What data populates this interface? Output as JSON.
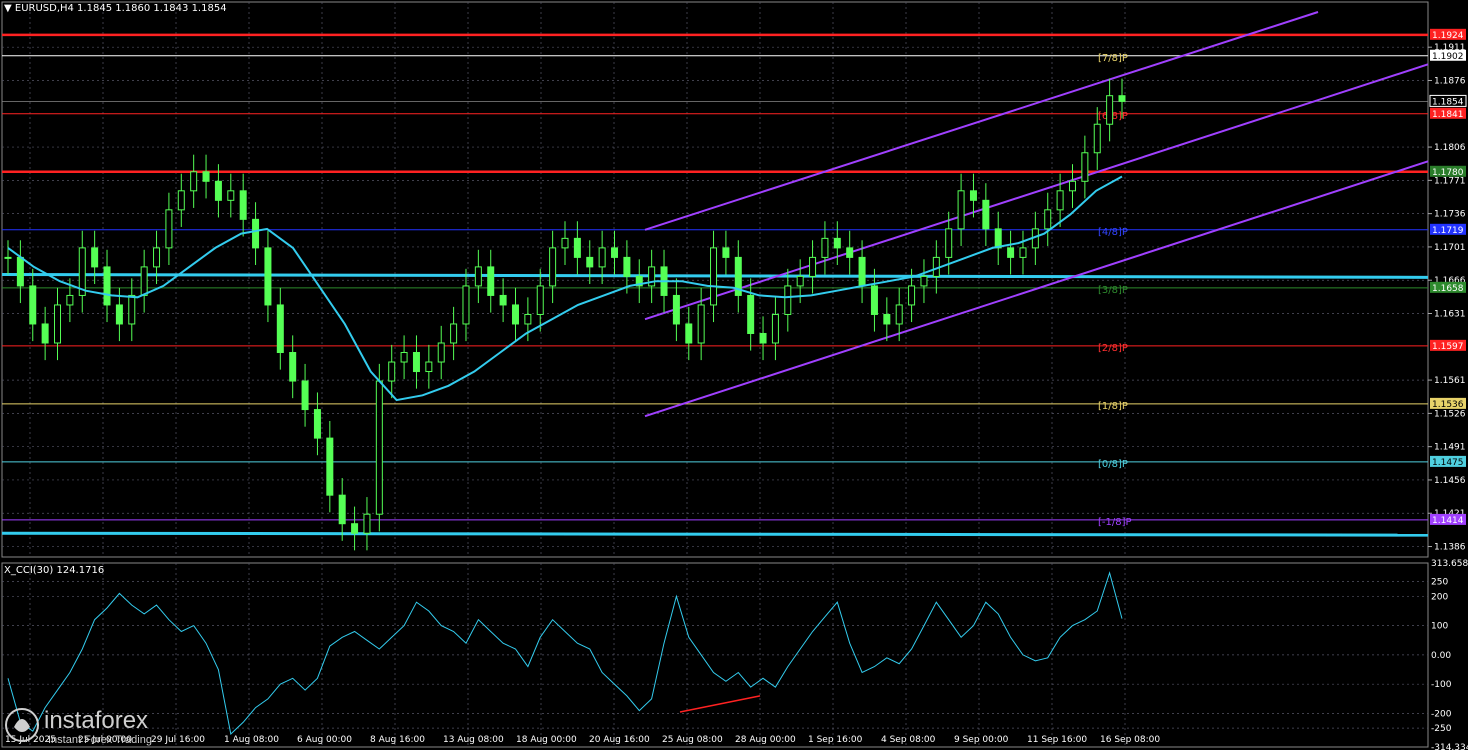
{
  "header": {
    "symbol_line": "▼ EURUSD,H4  1.1845 1.1860 1.1843 1.1854",
    "cci_line": "X_CCI(30) 124.1716"
  },
  "logo": {
    "brand": "instaforex",
    "sub": "Instant Forex Trading"
  },
  "chart_data": {
    "type": "candlestick",
    "symbol": "EURUSD",
    "timeframe": "H4",
    "ohlc": {
      "open": 1.1845,
      "high": 1.186,
      "low": 1.1843,
      "close": 1.1854
    },
    "current_price": 1.1854,
    "ylim": [
      1.1375,
      1.1948
    ],
    "price_ticks": [
      1.1911,
      1.1876,
      1.1806,
      1.1771,
      1.1736,
      1.1701,
      1.1666,
      1.1631,
      1.1561,
      1.1526,
      1.1491,
      1.1456,
      1.1421,
      1.1386
    ],
    "x_ticks": [
      "15 Jul 2025",
      "25 Jul 00:00",
      "29 Jul 16:00",
      "1 Aug 08:00",
      "6 Aug 00:00",
      "8 Aug 16:00",
      "13 Aug 08:00",
      "18 Aug 00:00",
      "20 Aug 16:00",
      "25 Aug 08:00",
      "28 Aug 00:00",
      "1 Sep 16:00",
      "4 Sep 08:00",
      "9 Sep 00:00",
      "11 Sep 16:00",
      "16 Sep 08:00"
    ],
    "close_series": [
      1.169,
      1.166,
      1.162,
      1.16,
      1.164,
      1.165,
      1.17,
      1.168,
      1.164,
      1.162,
      1.165,
      1.168,
      1.17,
      1.174,
      1.176,
      1.178,
      1.177,
      1.175,
      1.176,
      1.173,
      1.17,
      1.164,
      1.159,
      1.156,
      1.153,
      1.15,
      1.144,
      1.141,
      1.14,
      1.142,
      1.156,
      1.158,
      1.159,
      1.157,
      1.158,
      1.16,
      1.162,
      1.166,
      1.168,
      1.165,
      1.164,
      1.162,
      1.163,
      1.166,
      1.17,
      1.171,
      1.169,
      1.168,
      1.17,
      1.169,
      1.167,
      1.166,
      1.168,
      1.165,
      1.162,
      1.16,
      1.164,
      1.17,
      1.169,
      1.165,
      1.161,
      1.16,
      1.163,
      1.166,
      1.167,
      1.169,
      1.171,
      1.17,
      1.169,
      1.166,
      1.163,
      1.162,
      1.164,
      1.166,
      1.167,
      1.169,
      1.172,
      1.176,
      1.175,
      1.172,
      1.17,
      1.169,
      1.17,
      1.172,
      1.174,
      1.176,
      1.177,
      1.18,
      1.183,
      1.186,
      1.1854
    ],
    "ma_series": [
      1.17,
      1.168,
      1.1665,
      1.1655,
      1.165,
      1.1648,
      1.166,
      1.168,
      1.17,
      1.1715,
      1.172,
      1.17,
      1.166,
      1.162,
      1.157,
      1.154,
      1.1545,
      1.1555,
      1.157,
      1.159,
      1.161,
      1.1625,
      1.164,
      1.165,
      1.166,
      1.1665,
      1.1665,
      1.166,
      1.1658,
      1.165,
      1.1648,
      1.165,
      1.1655,
      1.166,
      1.1665,
      1.167,
      1.168,
      1.169,
      1.17,
      1.1705,
      1.1715,
      1.1735,
      1.176,
      1.1775
    ],
    "levels": [
      {
        "price": 1.1924,
        "text": "1.1924",
        "color": "#ff2222",
        "thick": true
      },
      {
        "price": 1.1902,
        "text": "1.1902",
        "color": "#ffffff",
        "murrey": "[7/8]P",
        "mcolor": "#e8d36a"
      },
      {
        "price": 1.1841,
        "text": "1.1841",
        "color": "#ff2222",
        "murrey": "[6/8]P",
        "mcolor": "#ff3030"
      },
      {
        "price": 1.178,
        "text": "1.1780",
        "color": "#ff2222",
        "thick": true,
        "lblbg": "#2a7d2a"
      },
      {
        "price": 1.1719,
        "text": "1.1719",
        "color": "#2233ff",
        "murrey": "[4/8]P",
        "mcolor": "#3344ff"
      },
      {
        "price": 1.1658,
        "text": "1.1658",
        "color": "#2e8b2e",
        "murrey": "[3/8]P",
        "mcolor": "#2e8b2e"
      },
      {
        "price": 1.1597,
        "text": "1.1597",
        "color": "#ff2222",
        "murrey": "[2/8]P",
        "mcolor": "#ff3030"
      },
      {
        "price": 1.1536,
        "text": "1.1536",
        "color": "#e8d36a",
        "murrey": "[1/8]P",
        "mcolor": "#e8d36a"
      },
      {
        "price": 1.1475,
        "text": "1.1475",
        "color": "#4fd0e0",
        "murrey": "[0/8]P",
        "mcolor": "#4fd0e0"
      },
      {
        "price": 1.1414,
        "text": "1.1414",
        "color": "#a040ff",
        "murrey": "[-1/8]P",
        "mcolor": "#a040ff"
      }
    ],
    "current_label": "1.1854",
    "cci": {
      "value": 124.1716,
      "ylim": [
        -314.334,
        313.6589
      ],
      "tick_labels": [
        "313.6589",
        "250",
        "200",
        "100",
        "0.00",
        "-100",
        "-200",
        "-250",
        "-314.334"
      ],
      "tick_values": [
        313.6589,
        250,
        200,
        100,
        0,
        -100,
        -200,
        -250,
        -314.334
      ],
      "series": [
        -80,
        -230,
        -260,
        -180,
        -120,
        -60,
        20,
        120,
        160,
        210,
        170,
        140,
        170,
        120,
        80,
        100,
        40,
        -50,
        -270,
        -230,
        -180,
        -150,
        -100,
        -80,
        -120,
        -80,
        30,
        60,
        80,
        50,
        20,
        60,
        100,
        180,
        150,
        100,
        80,
        40,
        120,
        80,
        40,
        20,
        -40,
        60,
        120,
        80,
        40,
        20,
        -60,
        -100,
        -140,
        -190,
        -150,
        40,
        200,
        60,
        0,
        -60,
        -90,
        -60,
        -110,
        -80,
        -110,
        -40,
        20,
        80,
        130,
        180,
        40,
        -60,
        -40,
        -10,
        -30,
        20,
        100,
        180,
        120,
        60,
        100,
        180,
        140,
        60,
        0,
        -20,
        -10,
        60,
        100,
        120,
        150,
        280,
        124
      ]
    }
  },
  "colors": {
    "candle": "#55ff55",
    "ma": "#33ccee",
    "channel": "#a040ff",
    "support": "#33ccee",
    "cci": "#33ccee",
    "divergence": "#ff2222"
  }
}
